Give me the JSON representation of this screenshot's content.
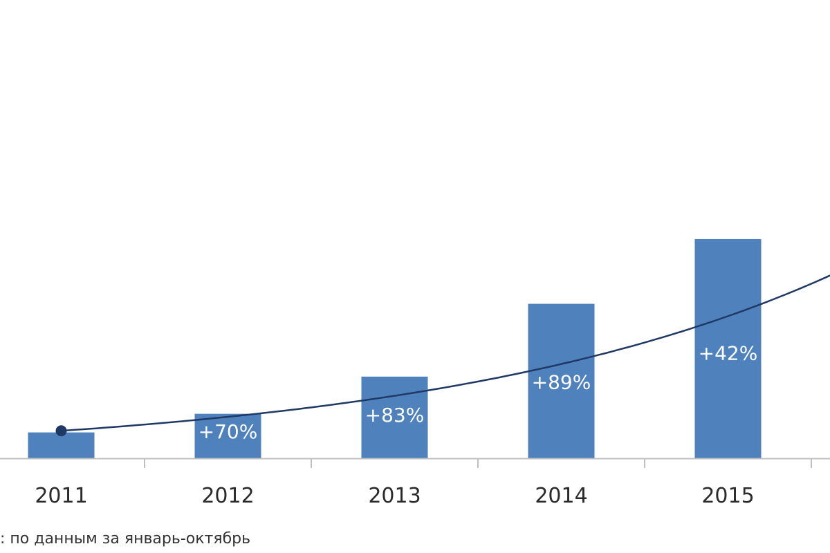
{
  "colors": {
    "bar": "#4f81bd",
    "trend": "#1f3864",
    "axis": "#bfbfbf",
    "bar_label": "#ffffff",
    "tick_label": "#2a2a2a"
  },
  "chart_data": {
    "type": "bar",
    "categories": [
      "2011",
      "2012",
      "2013",
      "2014",
      "2015"
    ],
    "values": [
      0.32,
      0.55,
      1.01,
      1.91,
      2.71
    ],
    "bar_labels": [
      "",
      "+70%",
      "+83%",
      "+89%",
      "+42%"
    ],
    "ylim": [
      0,
      5
    ],
    "grid": false,
    "legend": "none",
    "trendline": {
      "type": "exponential",
      "start_value": 0.34,
      "growth_rate": 0.74,
      "x_range": [
        0,
        5.02
      ]
    },
    "trend_marker_value": 0.34,
    "footnote": ": по данным за январь-октябрь"
  }
}
